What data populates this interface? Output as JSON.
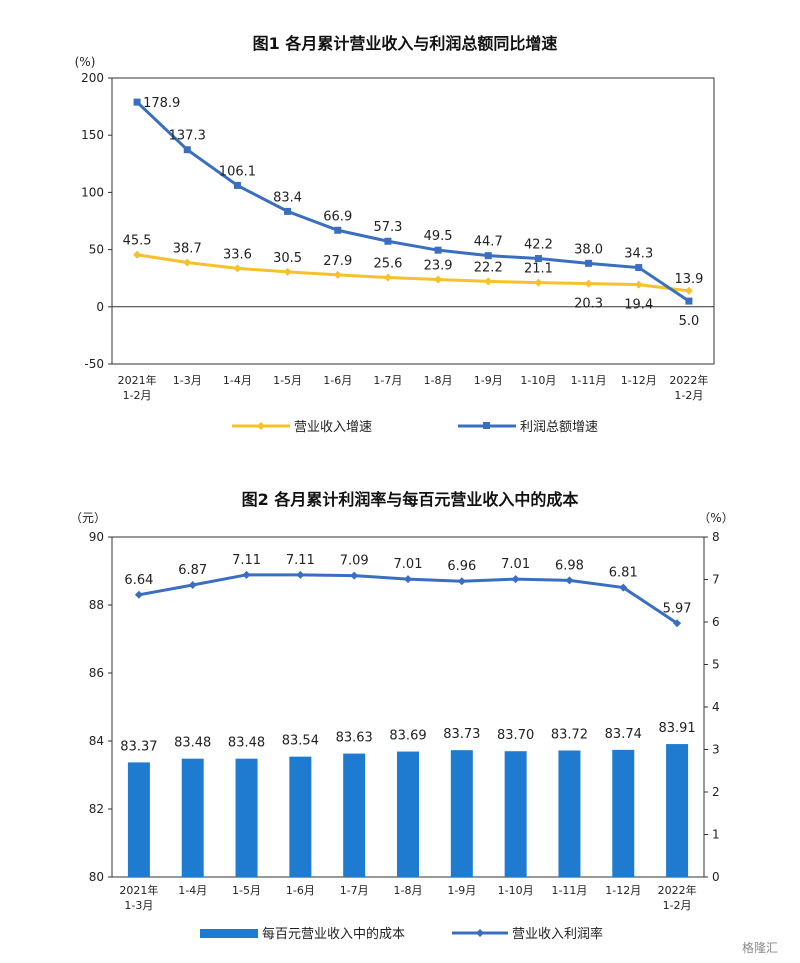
{
  "chart_data": [
    {
      "type": "line",
      "title": "图1  各月累计营业收入与利润总额同比增速",
      "unit_label": "(%)",
      "ylim": [
        -50,
        200
      ],
      "yticks": [
        "200",
        "150",
        "100",
        "50",
        "0",
        "-50"
      ],
      "categories": [
        "2021年|1-2月",
        "1-3月",
        "1-4月",
        "1-5月",
        "1-6月",
        "1-7月",
        "1-8月",
        "1-9月",
        "1-10月",
        "1-11月",
        "1-12月",
        "2022年|1-2月"
      ],
      "series": [
        {
          "name": "营业收入增速",
          "color": "#f5c22b",
          "values": [
            45.5,
            38.7,
            33.6,
            30.5,
            27.9,
            25.6,
            23.9,
            22.2,
            21.1,
            20.3,
            19.4,
            13.9
          ],
          "labels": [
            "45.5",
            "38.7",
            "33.6",
            "30.5",
            "27.9",
            "25.6",
            "23.9",
            "22.2",
            "21.1",
            "20.3",
            "19.4",
            "13.9"
          ]
        },
        {
          "name": "利润总额增速",
          "color": "#3a6fc0",
          "values": [
            178.9,
            137.3,
            106.1,
            83.4,
            66.9,
            57.3,
            49.5,
            44.7,
            42.2,
            38.0,
            34.3,
            5.0
          ],
          "labels": [
            "178.9",
            "137.3",
            "106.1",
            "83.4",
            "66.9",
            "57.3",
            "49.5",
            "44.7",
            "42.2",
            "38.0",
            "34.3",
            "5.0"
          ]
        }
      ],
      "grid": false,
      "legend": "bottom"
    },
    {
      "type": "bar+line",
      "title": "图2  各月累计利润率与每百元营业收入中的成本",
      "left_unit_label": "（元）",
      "right_unit_label": "（%）",
      "ylim_left": [
        80,
        90
      ],
      "yticks_left": [
        "90",
        "88",
        "86",
        "84",
        "82",
        "80"
      ],
      "ylim_right": [
        0,
        8
      ],
      "yticks_right": [
        "8",
        "7",
        "6",
        "5",
        "4",
        "3",
        "2",
        "1",
        "0"
      ],
      "categories": [
        "2021年|1-3月",
        "1-4月",
        "1-5月",
        "1-6月",
        "1-7月",
        "1-8月",
        "1-9月",
        "1-10月",
        "1-11月",
        "1-12月",
        "2022年|1-2月"
      ],
      "bar_series": {
        "name": "每百元营业收入中的成本",
        "color": "#1f7bd0",
        "values": [
          83.37,
          83.48,
          83.48,
          83.54,
          83.63,
          83.69,
          83.73,
          83.7,
          83.72,
          83.74,
          83.91
        ],
        "labels": [
          "83.37",
          "83.48",
          "83.48",
          "83.54",
          "83.63",
          "83.69",
          "83.73",
          "83.70",
          "83.72",
          "83.74",
          "83.91"
        ]
      },
      "line_series": {
        "name": "营业收入利润率",
        "color": "#3a6fc0",
        "values": [
          6.64,
          6.87,
          7.11,
          7.11,
          7.09,
          7.01,
          6.96,
          7.01,
          6.98,
          6.81,
          5.97
        ],
        "labels": [
          "6.64",
          "6.87",
          "7.11",
          "7.11",
          "7.09",
          "7.01",
          "6.96",
          "7.01",
          "6.98",
          "6.81",
          "5.97"
        ]
      },
      "grid": false,
      "legend": "bottom"
    }
  ],
  "watermark": "格隆汇"
}
